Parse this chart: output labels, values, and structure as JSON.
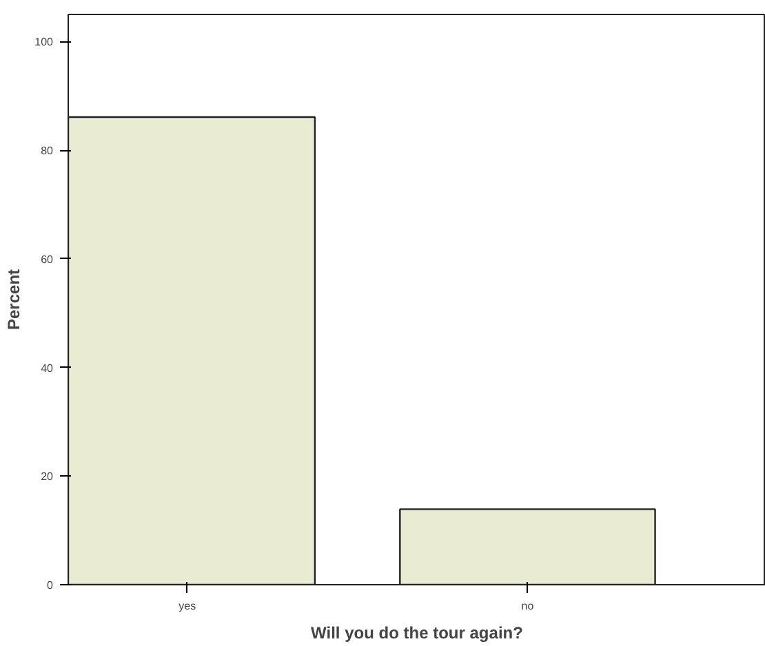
{
  "chart_data": {
    "type": "bar",
    "xlabel": "Will you do the tour again?",
    "ylabel": "Percent",
    "categories": [
      "yes",
      "no"
    ],
    "values": [
      86.1,
      13.9
    ],
    "color": "#e9ebd3",
    "ylim": [
      0,
      105
    ],
    "yticks": [
      0,
      20,
      40,
      60,
      80,
      100
    ],
    "grid": false
  }
}
